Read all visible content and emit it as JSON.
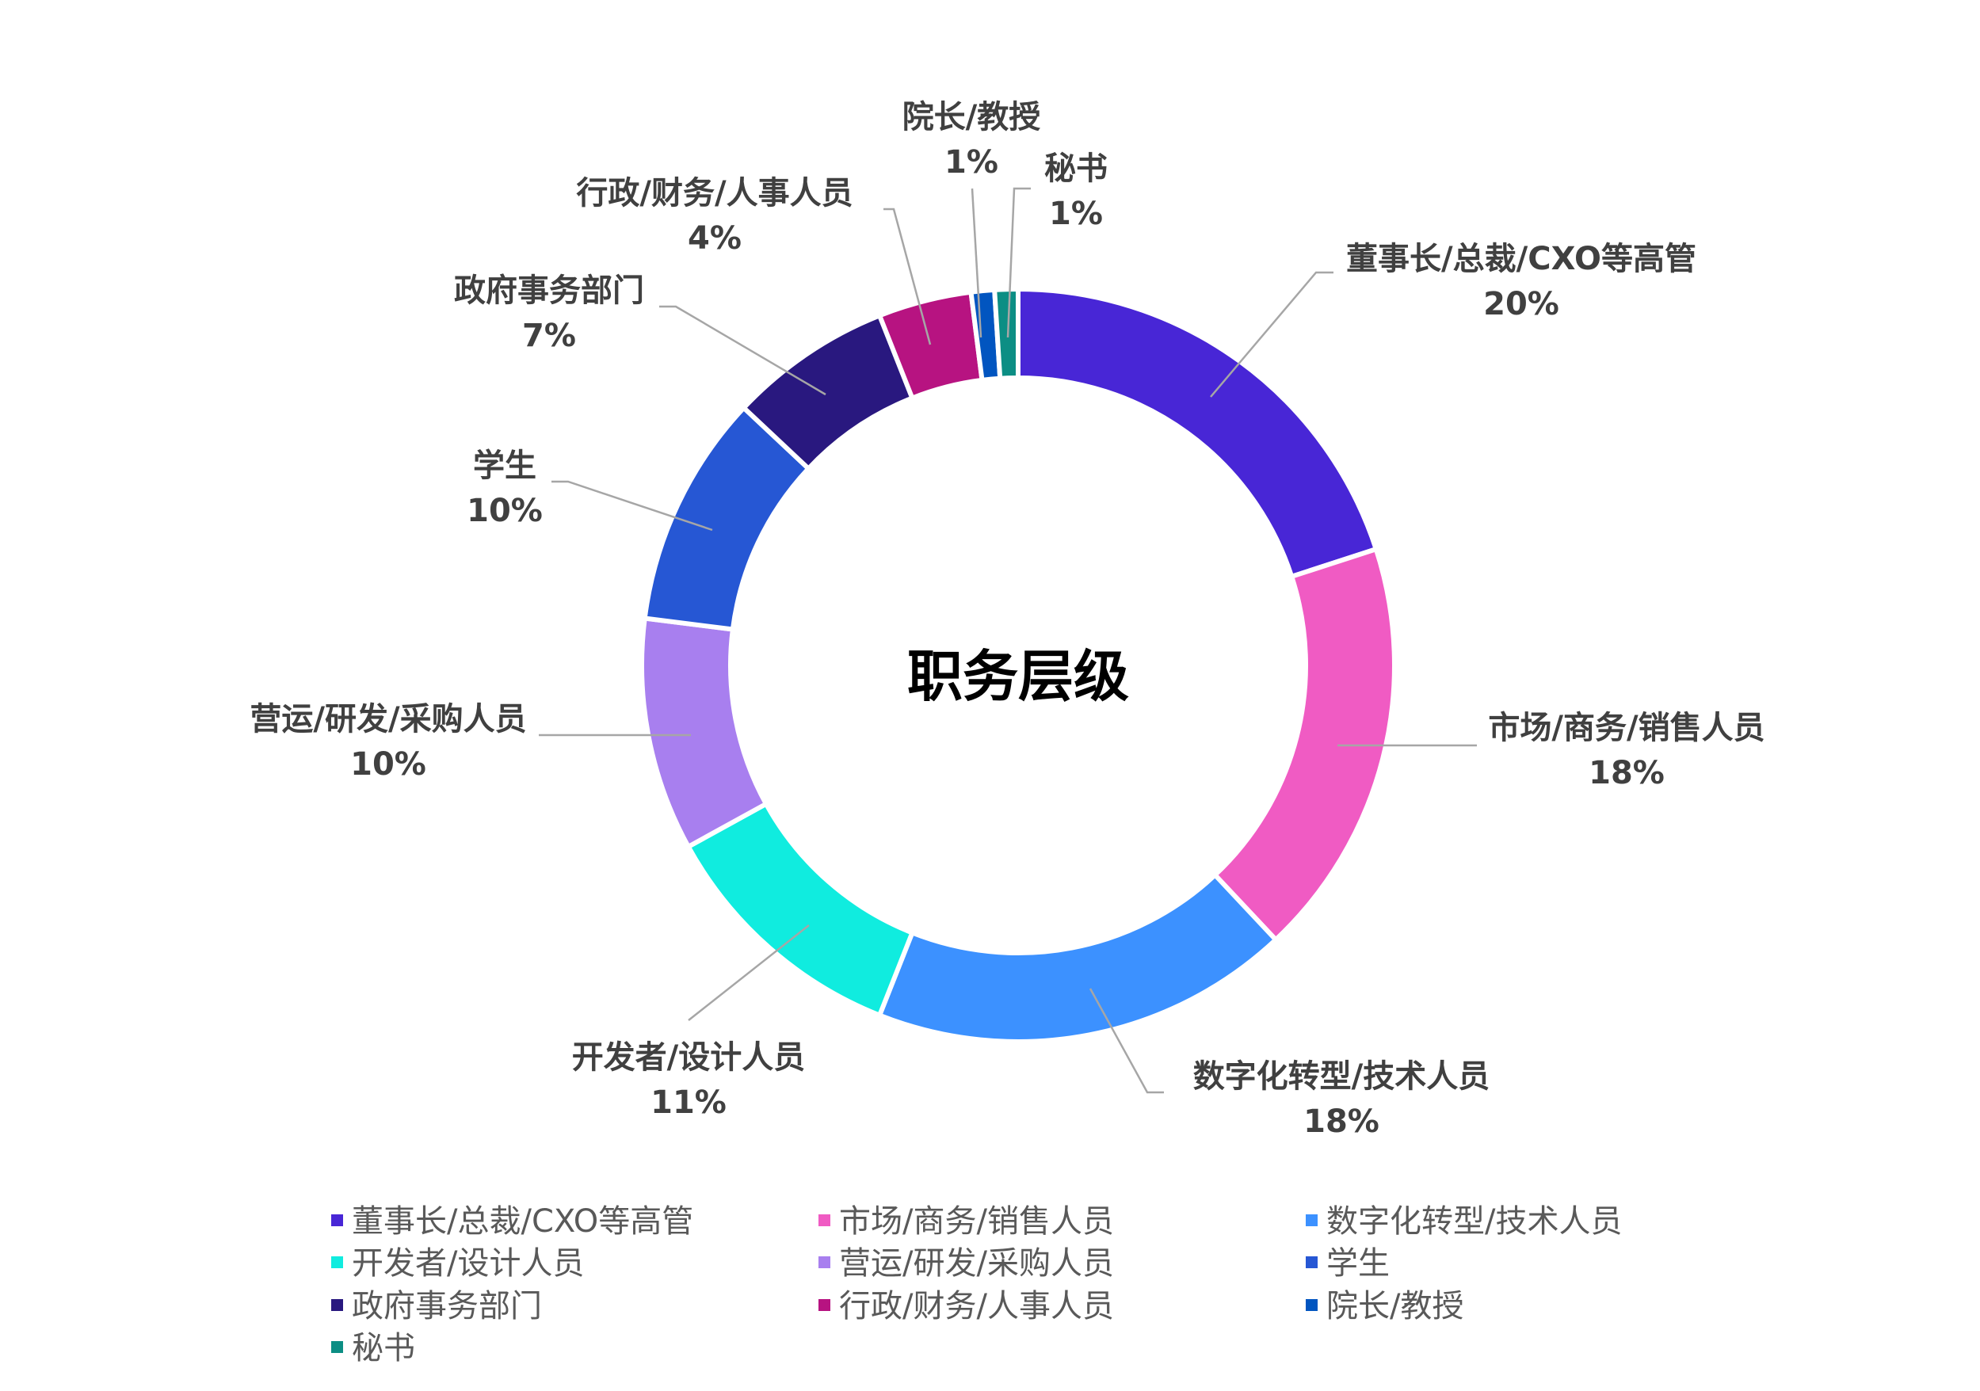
{
  "chart_data": {
    "type": "pie",
    "variant": "donut",
    "title": "职务层级",
    "categories": [
      "董事长/总裁/CXO等高管",
      "市场/商务/销售人员",
      "数字化转型/技术人员",
      "开发者/设计人员",
      "营运/研发/采购人员",
      "学生",
      "政府事务部门",
      "行政/财务/人事人员",
      "院长/教授",
      "秘书"
    ],
    "values": [
      20,
      18,
      18,
      11,
      10,
      10,
      7,
      4,
      1,
      1
    ],
    "value_labels": [
      "20%",
      "18%",
      "18%",
      "11%",
      "10%",
      "10%",
      "7%",
      "4%",
      "1%",
      "1%"
    ],
    "colors": [
      "#4826D6",
      "#F05BC3",
      "#3C91FF",
      "#10ECDF",
      "#A87FEF",
      "#2657D4",
      "#29187F",
      "#B71381",
      "#0155C0",
      "#0C8E84"
    ],
    "legend_position": "bottom"
  }
}
